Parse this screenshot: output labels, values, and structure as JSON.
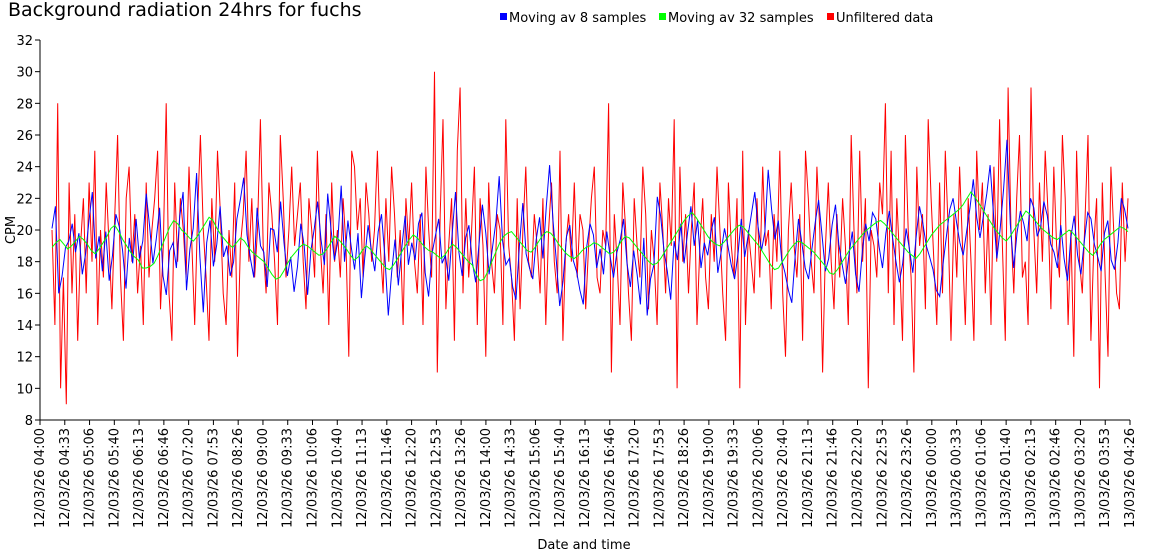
{
  "chart_data": {
    "type": "line",
    "title": "Background radiation 24hrs for fuchs",
    "xlabel": "Date and time",
    "ylabel": "CPM",
    "ylim": [
      8,
      32
    ],
    "yticks": [
      8,
      10,
      12,
      14,
      16,
      18,
      20,
      22,
      24,
      26,
      28,
      30,
      32
    ],
    "grid": false,
    "legend_position": "top-right",
    "xticks": [
      "12/03/26 04:00",
      "12/03/26 04:33",
      "12/03/26 05:06",
      "12/03/26 05:40",
      "12/03/26 06:13",
      "12/03/26 06:46",
      "12/03/26 07:20",
      "12/03/26 07:53",
      "12/03/26 08:26",
      "12/03/26 09:00",
      "12/03/26 09:33",
      "12/03/26 10:06",
      "12/03/26 10:40",
      "12/03/26 11:13",
      "12/03/26 11:46",
      "12/03/26 12:20",
      "12/03/26 12:53",
      "12/03/26 13:26",
      "12/03/26 14:00",
      "12/03/26 14:33",
      "12/03/26 15:06",
      "12/03/26 15:40",
      "12/03/26 16:13",
      "12/03/26 16:46",
      "12/03/26 17:20",
      "12/03/26 17:53",
      "12/03/26 18:26",
      "12/03/26 19:00",
      "12/03/26 19:33",
      "12/03/26 20:06",
      "12/03/26 20:40",
      "12/03/26 21:13",
      "12/03/26 21:46",
      "12/03/26 22:20",
      "12/03/26 22:53",
      "12/03/26 23:26",
      "13/03/26 00:00",
      "13/03/26 00:33",
      "13/03/26 01:06",
      "13/03/26 01:40",
      "13/03/26 02:13",
      "13/03/26 02:46",
      "13/03/26 03:20",
      "13/03/26 03:53",
      "13/03/26 04:26"
    ],
    "series": [
      {
        "name": "Moving av 8 samples",
        "color": "#0000ff",
        "values": [
          20.1,
          21.5,
          16.0,
          17.1,
          18.9,
          19.3,
          20.4,
          18.6,
          19.8,
          17.2,
          18.5,
          20.6,
          22.4,
          18.2,
          19.6,
          17.4,
          19.9,
          16.8,
          18.4,
          21.0,
          20.2,
          18.7,
          16.3,
          19.5,
          17.9,
          20.7,
          18.2,
          19.3,
          22.3,
          20.3,
          17.9,
          19.4,
          21.4,
          17.1,
          15.9,
          18.7,
          19.2,
          17.6,
          20.9,
          22.4,
          16.2,
          18.8,
          20.1,
          23.6,
          18.3,
          14.8,
          19.2,
          20.6,
          17.7,
          19.1,
          21.5,
          18.3,
          19.0,
          17.1,
          18.0,
          20.7,
          21.9,
          23.3,
          19.7,
          18.2,
          17.0,
          21.4,
          19.0,
          18.6,
          16.4,
          20.1,
          20.0,
          18.6,
          21.8,
          19.2,
          17.1,
          18.3,
          16.1,
          17.7,
          20.4,
          19.0,
          15.9,
          18.7,
          20.1,
          21.8,
          19.4,
          17.8,
          22.3,
          20.0,
          18.1,
          19.3,
          22.8,
          18.0,
          20.6,
          18.9,
          17.5,
          19.8,
          15.7,
          18.2,
          20.3,
          18.7,
          17.4,
          19.9,
          21.0,
          18.3,
          14.6,
          17.3,
          19.4,
          16.5,
          18.8,
          20.9,
          17.8,
          19.2,
          18.1,
          20.4,
          21.1,
          17.3,
          15.8,
          18.5,
          19.6,
          20.7,
          17.9,
          18.4,
          16.8,
          19.7,
          22.4,
          18.6,
          17.1,
          19.5,
          20.3,
          18.0,
          16.7,
          19.1,
          21.6,
          19.8,
          17.2,
          18.9,
          20.5,
          23.4,
          19.3,
          17.8,
          18.2,
          16.4,
          15.6,
          19.0,
          21.7,
          18.5,
          17.6,
          16.9,
          19.4,
          20.8,
          18.2,
          21.5,
          24.1,
          20.6,
          18.0,
          15.2,
          16.8,
          19.6,
          20.3,
          18.1,
          17.4,
          16.2,
          15.3,
          18.9,
          20.4,
          19.7,
          17.6,
          18.8,
          17.2,
          19.9,
          18.3,
          17.0,
          18.6,
          19.4,
          20.7,
          17.9,
          16.4,
          18.7,
          17.2,
          15.3,
          19.5,
          14.6,
          16.9,
          17.8,
          22.1,
          20.9,
          18.7,
          17.4,
          15.6,
          19.3,
          18.1,
          20.4,
          17.9,
          19.8,
          21.5,
          19.0,
          20.6,
          17.6,
          19.2,
          18.4,
          19.9,
          20.8,
          17.3,
          18.6,
          20.1,
          19.0,
          17.8,
          16.9,
          18.5,
          20.7,
          18.3,
          19.6,
          21.0,
          22.4,
          20.2,
          18.7,
          19.9,
          23.8,
          21.3,
          19.4,
          20.6,
          18.1,
          17.3,
          16.2,
          15.4,
          18.3,
          20.7,
          19.2,
          17.6,
          16.9,
          18.8,
          20.5,
          21.9,
          19.7,
          17.4,
          18.2,
          20.3,
          21.6,
          19.1,
          17.8,
          16.6,
          18.4,
          19.9,
          17.2,
          16.1,
          18.7,
          20.4,
          19.3,
          21.1,
          20.7,
          18.9,
          17.6,
          19.8,
          21.2,
          19.5,
          18.0,
          16.7,
          17.9,
          20.1,
          18.8,
          17.3,
          19.6,
          21.5,
          20.4,
          19.0,
          18.3,
          17.5,
          16.2,
          15.8,
          17.9,
          19.6,
          21.3,
          22.0,
          20.5,
          19.2,
          18.4,
          19.9,
          21.4,
          23.2,
          20.8,
          19.5,
          20.9,
          22.3,
          24.1,
          21.0,
          18.2,
          20.1,
          22.6,
          25.7,
          20.4,
          17.6,
          19.8,
          21.2,
          20.4,
          19.3,
          22.0,
          21.4,
          19.6,
          20.2,
          21.8,
          20.9,
          19.1,
          18.6,
          17.6,
          20.3,
          18.2,
          16.8,
          19.5,
          20.9,
          18.4,
          17.2,
          19.3,
          21.1,
          20.7,
          19.1,
          18.3,
          17.4,
          19.8,
          20.6,
          18.1,
          17.5,
          19.2,
          22.0,
          21.3,
          20.1
        ]
      },
      {
        "name": "Moving av 32 samples",
        "color": "#00ff00",
        "values": [
          18.9,
          19.2,
          19.4,
          19.1,
          18.8,
          19.0,
          19.3,
          19.6,
          19.4,
          19.1,
          18.7,
          18.5,
          18.8,
          19.2,
          19.6,
          20.1,
          20.3,
          19.9,
          19.4,
          19.0,
          18.6,
          18.3,
          18.1,
          17.6,
          17.6,
          17.7,
          17.9,
          18.4,
          19.0,
          19.6,
          20.2,
          20.6,
          20.4,
          20.0,
          19.8,
          19.5,
          19.3,
          19.6,
          20.0,
          20.4,
          20.8,
          20.6,
          20.1,
          19.7,
          19.4,
          19.1,
          18.9,
          19.2,
          19.5,
          19.3,
          18.9,
          18.6,
          18.4,
          18.2,
          18.0,
          17.6,
          17.2,
          16.9,
          17.0,
          17.4,
          17.9,
          18.3,
          18.6,
          18.9,
          19.1,
          19.0,
          18.8,
          18.6,
          18.4,
          18.5,
          18.8,
          19.2,
          19.6,
          19.4,
          19.1,
          18.8,
          18.4,
          18.1,
          18.3,
          18.7,
          19.0,
          18.8,
          18.5,
          18.2,
          17.9,
          17.6,
          17.5,
          17.8,
          18.2,
          18.6,
          19.0,
          19.4,
          19.7,
          19.5,
          19.2,
          18.9,
          18.7,
          18.6,
          18.4,
          18.2,
          18.4,
          18.8,
          19.1,
          18.9,
          18.6,
          18.3,
          18.0,
          17.8,
          17.2,
          16.8,
          16.9,
          17.4,
          18.0,
          18.6,
          19.2,
          19.6,
          19.8,
          19.9,
          19.6,
          19.3,
          19.0,
          18.7,
          18.6,
          18.9,
          19.3,
          19.7,
          19.9,
          19.8,
          19.5,
          19.1,
          18.8,
          18.5,
          18.3,
          18.2,
          18.4,
          18.7,
          18.9,
          19.0,
          19.2,
          19.1,
          18.9,
          18.7,
          18.5,
          18.6,
          18.9,
          19.3,
          19.6,
          19.5,
          19.2,
          18.9,
          18.6,
          18.3,
          18.0,
          17.8,
          17.9,
          18.2,
          18.6,
          19.0,
          19.4,
          19.8,
          20.2,
          20.6,
          20.9,
          21.1,
          20.8,
          20.4,
          20.0,
          19.6,
          19.3,
          19.1,
          19.0,
          19.2,
          19.5,
          19.8,
          20.1,
          20.3,
          20.2,
          19.9,
          19.6,
          19.3,
          19.0,
          18.6,
          18.2,
          17.8,
          17.5,
          17.6,
          18.0,
          18.4,
          18.8,
          19.1,
          19.3,
          19.2,
          19.0,
          18.8,
          18.6,
          18.3,
          18.0,
          17.7,
          17.3,
          17.2,
          17.5,
          17.9,
          18.3,
          18.7,
          19.0,
          19.3,
          19.6,
          19.9,
          20.1,
          20.3,
          20.5,
          20.6,
          20.4,
          20.1,
          19.8,
          19.5,
          19.2,
          18.9,
          18.6,
          18.4,
          18.2,
          18.5,
          18.9,
          19.3,
          19.7,
          20.0,
          20.3,
          20.5,
          20.7,
          20.9,
          21.1,
          21.3,
          21.6,
          22.0,
          22.4,
          22.1,
          21.7,
          21.3,
          20.9,
          20.5,
          20.1,
          19.8,
          19.5,
          19.3,
          19.6,
          20.0,
          20.4,
          20.8,
          21.2,
          21.0,
          20.7,
          20.4,
          20.1,
          19.9,
          19.7,
          19.5,
          19.4,
          19.6,
          19.8,
          20.0,
          19.8,
          19.5,
          19.2,
          18.9,
          18.6,
          18.4,
          18.7,
          19.1,
          19.4,
          19.6,
          19.8,
          20.0,
          20.2,
          20.1,
          19.9
        ]
      },
      {
        "name": "Unfiltered data",
        "color": "#ff0000",
        "values": [
          20,
          14,
          28,
          10,
          17,
          9,
          23,
          16,
          21,
          13,
          19,
          22,
          16,
          23,
          18,
          25,
          14,
          20,
          17,
          23,
          19,
          15,
          21,
          26,
          17,
          13,
          22,
          24,
          18,
          21,
          16,
          19,
          14,
          23,
          17,
          20,
          22,
          25,
          15,
          19,
          28,
          16,
          13,
          23,
          18,
          22,
          20,
          17,
          24,
          19,
          14,
          21,
          26,
          20,
          17,
          13,
          22,
          18,
          25,
          21,
          16,
          14,
          20,
          17,
          23,
          12,
          19,
          21,
          25,
          18,
          22,
          17,
          20,
          27,
          19,
          16,
          23,
          21,
          18,
          14,
          26,
          22,
          17,
          20,
          24,
          19,
          21,
          23,
          18,
          15,
          22,
          20,
          17,
          25,
          19,
          16,
          21,
          14,
          23,
          18,
          20,
          17,
          22,
          19,
          12,
          25,
          24,
          20,
          22,
          17,
          23,
          21,
          18,
          20,
          25,
          19,
          16,
          22,
          18,
          24,
          21,
          17,
          20,
          14,
          22,
          19,
          23,
          18,
          16,
          21,
          14,
          24,
          20,
          17,
          30,
          11,
          21,
          27,
          15,
          19,
          22,
          13,
          25,
          29,
          16,
          22,
          17,
          20,
          24,
          14,
          22,
          19,
          12,
          23,
          18,
          16,
          21,
          20,
          14,
          27,
          19,
          17,
          13,
          22,
          15,
          20,
          24,
          18,
          17,
          21,
          19,
          16,
          22,
          14,
          20,
          23,
          18,
          16,
          25,
          13,
          19,
          21,
          18,
          23,
          17,
          21,
          20,
          15,
          19,
          22,
          24,
          17,
          16,
          20,
          19,
          28,
          11,
          21,
          18,
          14,
          23,
          20,
          16,
          13,
          22,
          19,
          17,
          24,
          21,
          15,
          20,
          18,
          14,
          23,
          20,
          16,
          22,
          19,
          27,
          10,
          24,
          18,
          21,
          16,
          20,
          23,
          14,
          19,
          22,
          17,
          15,
          21,
          18,
          24,
          20,
          16,
          13,
          23,
          19,
          17,
          22,
          10,
          25,
          14,
          20,
          18,
          16,
          22,
          17,
          24,
          19,
          20,
          15,
          21,
          18,
          25,
          16,
          12,
          20,
          23,
          19,
          17,
          21,
          13,
          25,
          22,
          18,
          16,
          24,
          20,
          11,
          19,
          23,
          18,
          15,
          21,
          17,
          22,
          19,
          14,
          26,
          20,
          16,
          25,
          18,
          22,
          10,
          20,
          19,
          17,
          23,
          21,
          28,
          16,
          25,
          14,
          22,
          18,
          13,
          26,
          20,
          17,
          11,
          24,
          19,
          21,
          15,
          27,
          22,
          18,
          14,
          23,
          16,
          25,
          20,
          13,
          21,
          17,
          24,
          19,
          14,
          22,
          18,
          13,
          25,
          20,
          23,
          16,
          21,
          14,
          24,
          18,
          27,
          19,
          13,
          29,
          20,
          16,
          22,
          26,
          17,
          18,
          14,
          29,
          20,
          16,
          23,
          18,
          25,
          21,
          15,
          24,
          19,
          17,
          26,
          22,
          14,
          20,
          12,
          25,
          18,
          16,
          21,
          26,
          13,
          19,
          22,
          10,
          23,
          17,
          12,
          24,
          20,
          16,
          15,
          23,
          18,
          22
        ]
      }
    ]
  }
}
